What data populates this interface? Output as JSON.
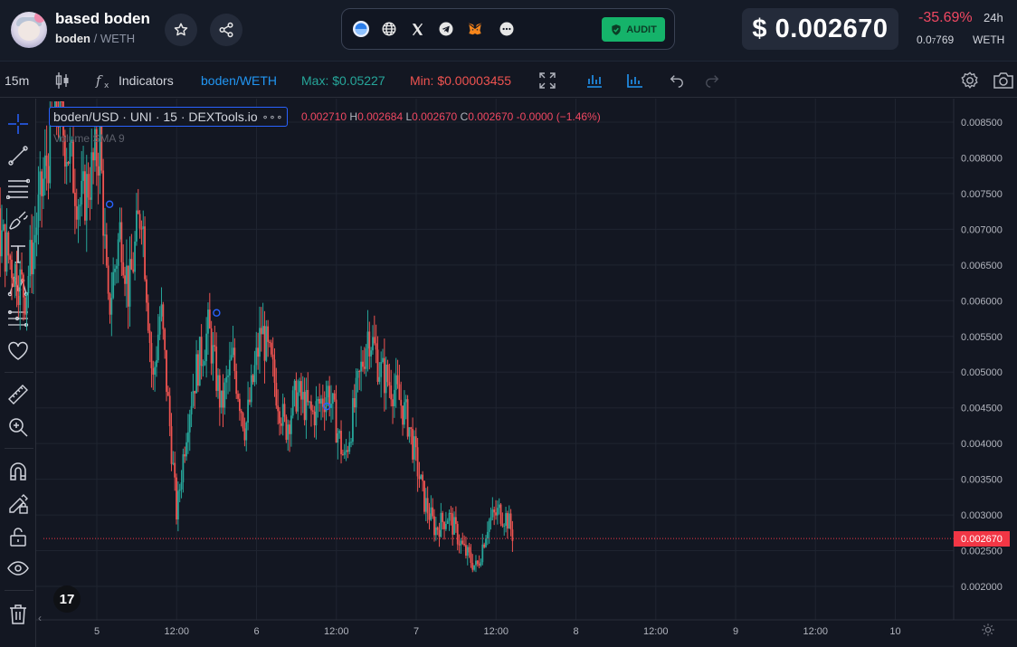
{
  "header": {
    "token_name": "based boden",
    "pair_base": "boden",
    "pair_separator": " / ",
    "pair_quote": "WETH",
    "audit_label": "AUDIT",
    "price_usd": "$ 0.002670",
    "change_24h": "-35.69%",
    "change_period": "24h",
    "price_weth_prefix": "0.0",
    "price_weth_subscript": "7",
    "price_weth_digits": "769",
    "price_weth_unit": "WETH",
    "icons": [
      "avatar",
      "star-icon",
      "share-icon",
      "globe-icon",
      "x-icon",
      "telegram-icon",
      "metamask-icon",
      "more-icon"
    ]
  },
  "toolbar": {
    "interval": "15m",
    "indicators_label": "Indicators",
    "symbol": "boden/WETH",
    "max_label": "Max: $0.05227",
    "min_label": "Min: $0.00003455",
    "icons": [
      "candles-icon",
      "fx-icon",
      "fullscreen-icon",
      "chart-type-icon",
      "bars-icon",
      "undo-icon",
      "redo-icon",
      "settings-icon",
      "camera-icon"
    ]
  },
  "chart": {
    "legend_title": "boden/USD · UNI · 15 · DEXTools.io",
    "legend_more": "∘∘∘",
    "ohlc_open_value": "0.002710",
    "ohlc_high_key": "H",
    "ohlc_high_value": "0.002684",
    "ohlc_low_key": "L",
    "ohlc_low_value": "0.002670",
    "ohlc_close_key": "C",
    "ohlc_close_value": "0.002670",
    "ohlc_change": "-0.0000 (−1.46%)",
    "volume_label": "Volume SMA 9",
    "last_price_tag": "0.002670",
    "tv_logo": "17",
    "colors": {
      "up": "#26a69a",
      "down": "#ef5350",
      "last_price": "#f23645",
      "grid": "#1f2430"
    }
  },
  "chart_data": {
    "type": "candlestick",
    "y_ticks": [
      "0.008500",
      "0.008000",
      "0.007500",
      "0.007000",
      "0.006500",
      "0.006000",
      "0.005500",
      "0.005000",
      "0.004500",
      "0.004000",
      "0.003500",
      "0.003000",
      "0.002500",
      "0.002000"
    ],
    "x_ticks": [
      "5",
      "12:00",
      "6",
      "12:00",
      "7",
      "12:00",
      "8",
      "12:00",
      "9",
      "12:00",
      "10"
    ],
    "ylim": [
      0.0017,
      0.0088
    ],
    "last_price": 0.00267,
    "price_path": [
      [
        4.03,
        0.00268
      ],
      [
        4.05,
        0.0063
      ],
      [
        4.12,
        0.0088
      ],
      [
        4.18,
        0.0056
      ],
      [
        4.22,
        0.0088
      ],
      [
        4.3,
        0.0074
      ],
      [
        4.55,
        0.0061
      ],
      [
        4.75,
        0.0088
      ],
      [
        4.9,
        0.0073
      ],
      [
        5.02,
        0.0082
      ],
      [
        5.07,
        0.0058
      ],
      [
        5.15,
        0.00705
      ],
      [
        5.2,
        0.0061
      ],
      [
        5.28,
        0.0074
      ],
      [
        5.35,
        0.0048
      ],
      [
        5.4,
        0.0059
      ],
      [
        5.5,
        0.003
      ],
      [
        5.57,
        0.0044
      ],
      [
        5.62,
        0.005
      ],
      [
        5.7,
        0.0056
      ],
      [
        5.78,
        0.0045
      ],
      [
        5.85,
        0.0052
      ],
      [
        5.93,
        0.0042
      ],
      [
        6.03,
        0.0056
      ],
      [
        6.1,
        0.005
      ],
      [
        6.18,
        0.0042
      ],
      [
        6.25,
        0.0047
      ],
      [
        6.35,
        0.0044
      ],
      [
        6.45,
        0.00475
      ],
      [
        6.55,
        0.00375
      ],
      [
        6.62,
        0.0046
      ],
      [
        6.7,
        0.0056
      ],
      [
        6.78,
        0.005
      ],
      [
        6.86,
        0.00478
      ],
      [
        6.9,
        0.00458
      ],
      [
        6.95,
        0.0043
      ],
      [
        7.05,
        0.0032
      ],
      [
        7.12,
        0.0028
      ],
      [
        7.2,
        0.003
      ],
      [
        7.3,
        0.0025
      ],
      [
        7.38,
        0.00225
      ],
      [
        7.45,
        0.0029
      ],
      [
        7.52,
        0.00305
      ],
      [
        7.57,
        0.00295
      ],
      [
        7.61,
        0.00269
      ]
    ]
  }
}
